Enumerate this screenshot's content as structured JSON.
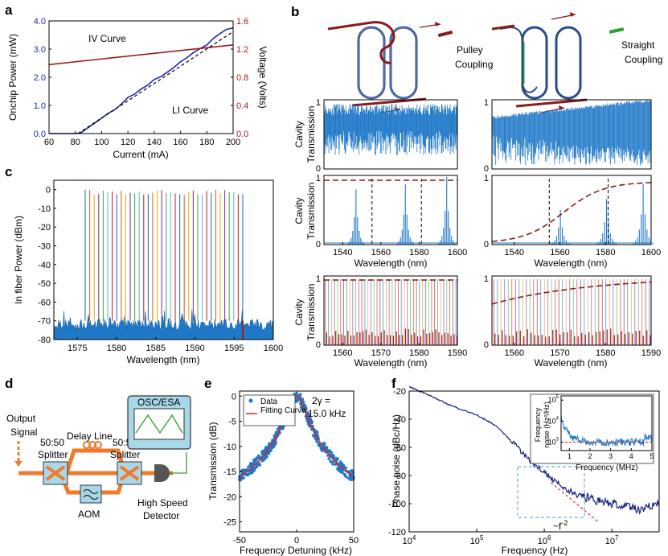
{
  "panel_labels": {
    "a": "a",
    "b": "b",
    "c": "c",
    "d": "d",
    "e": "e",
    "f": "f"
  },
  "colors": {
    "li_blue": "#1f2aa8",
    "iv_red": "#9b1c1c",
    "trans_blue": "#1f78c8",
    "dash_red": "#8b1a1a",
    "esa_green": "#2ca02c",
    "fit_red": "#d62728",
    "phase_navy": "#1a237e",
    "inset_blue": "#1f78c8",
    "orange": "#f07a2a",
    "teal_box": "#a8d8e8",
    "detector": "#555555",
    "box_dash": "#5fb3d9"
  },
  "chart_data": [
    {
      "id": "a",
      "type": "line",
      "xlabel": "Current (mA)",
      "ylabel": "Onchip Power (mW)",
      "y2label": "Voltage (Volts)",
      "xlim": [
        60,
        200
      ],
      "ylim": [
        0,
        4
      ],
      "y2lim": [
        0,
        1.6
      ],
      "xticks": [
        60,
        80,
        100,
        120,
        140,
        160,
        180,
        200
      ],
      "yticks": [
        "0.0",
        "1.0",
        "2.0",
        "3.0",
        "4.0"
      ],
      "y2ticks": [
        "0.0",
        "0.4",
        "0.8",
        "1.2",
        "1.6"
      ],
      "series": [
        {
          "name": "LI Curve",
          "axis": "left",
          "color": "#1f2aa8",
          "x": [
            60,
            80,
            84,
            90,
            95,
            100,
            105,
            110,
            115,
            120,
            125,
            130,
            135,
            140,
            145,
            150,
            155,
            160,
            165,
            170,
            175,
            180,
            185,
            190,
            195,
            200
          ],
          "y": [
            0,
            0,
            0.02,
            0.22,
            0.38,
            0.55,
            0.72,
            0.85,
            1.05,
            1.28,
            1.4,
            1.58,
            1.72,
            1.92,
            2.02,
            2.18,
            2.35,
            2.55,
            2.7,
            2.88,
            3.02,
            3.15,
            3.38,
            3.55,
            3.7,
            3.75
          ]
        },
        {
          "name": "IV Curve",
          "axis": "right",
          "color": "#9b1c1c",
          "x": [
            60,
            200
          ],
          "y": [
            0.98,
            1.26
          ]
        },
        {
          "name": "fit",
          "axis": "left",
          "dashed": true,
          "color": "#000000",
          "x": [
            82,
            200
          ],
          "y": [
            0,
            3.62
          ]
        }
      ],
      "labels": {
        "iv": "IV Curve",
        "li": "LI Curve"
      }
    },
    {
      "id": "c",
      "type": "line",
      "xlabel": "Wavelength (nm)",
      "ylabel": "In fiber Power (dBm)",
      "xlim": [
        1572,
        1600
      ],
      "ylim": [
        -80,
        5
      ],
      "xticks": [
        1575,
        1580,
        1585,
        1590,
        1595,
        1600
      ],
      "yticks": [
        0,
        -10,
        -20,
        -30,
        -40,
        -50,
        -60,
        -70,
        -80
      ],
      "comb": {
        "start": 1576.0,
        "stop": 1596.1,
        "count": 36,
        "peak_dbm": 0,
        "floor_dbm": -70
      }
    },
    {
      "id": "e",
      "type": "scatter",
      "xlabel": "Frequency Detuning (kHz)",
      "ylabel": "Transmission (dB)",
      "xlim": [
        -50,
        50
      ],
      "ylim": [
        -27,
        1
      ],
      "xticks": [
        -50,
        0,
        50
      ],
      "yticks": [
        0,
        -5,
        -10,
        -15,
        -20,
        -25
      ],
      "legend": {
        "data": "Data",
        "fit": "Fitting Curve"
      },
      "annotation": {
        "line1": "2γ =",
        "line2": "15.0 kHz"
      },
      "lorentzian": {
        "half_width_khz": 7.5,
        "floor_db": -25.5
      }
    },
    {
      "id": "f",
      "type": "line",
      "xlabel": "Frequency (Hz)",
      "ylabel": "Phase noise (dBc/Hz)",
      "xlim_log10": [
        4,
        7.7
      ],
      "ylim": [
        -120,
        -20
      ],
      "xticks": [
        {
          "exp": "4",
          "pos": 4
        },
        {
          "exp": "5",
          "pos": 5
        },
        {
          "exp": "6",
          "pos": 6
        },
        {
          "exp": "7",
          "pos": 7
        }
      ],
      "tick_base": "10",
      "yticks": [
        -20,
        -40,
        -60,
        -80,
        -100,
        -120
      ],
      "series": {
        "log10_f": [
          4,
          4.3,
          4.6,
          5.0,
          5.3,
          5.5,
          5.7,
          5.9,
          6.1,
          6.3,
          6.5,
          6.8,
          7.0,
          7.2,
          7.4,
          7.7
        ],
        "dbc": [
          -17,
          -23,
          -30,
          -37,
          -45,
          -55,
          -65,
          -74,
          -82,
          -89,
          -94,
          -98,
          -100,
          -102,
          -104,
          -100
        ]
      },
      "slope_label": {
        "approx": "~",
        "base": "f",
        "exponent": "-2"
      },
      "inset": {
        "xlabel": "Frequency (MHz)",
        "ylabel_line1": "Frequency",
        "ylabel_line2": "noise (Hz²/Hz)",
        "xticks": [
          "1",
          "2",
          "3",
          "4",
          "5"
        ],
        "ytick_base": "10",
        "yticks": [
          {
            "exp": "5"
          },
          {
            "exp": "4"
          },
          {
            "exp": "3"
          }
        ],
        "floor": 1000
      }
    }
  ],
  "panel_b": {
    "coupling": {
      "pulley": [
        "Pulley",
        "Coupling"
      ],
      "straight": [
        "Straight",
        "Coupling"
      ]
    },
    "ylabel": [
      "Cavity",
      "Transmission"
    ],
    "xlabel": "Wavelength (nm)",
    "rows": [
      {
        "yticks": [
          "1",
          "0"
        ],
        "xticks": []
      },
      {
        "yticks": [
          "1",
          "0"
        ],
        "xticks": [
          "1540",
          "1560",
          "1580",
          "1600"
        ]
      },
      {
        "yticks": [
          "1",
          "0"
        ],
        "xticks": [
          "1560",
          "1570",
          "1580",
          "1590"
        ]
      }
    ]
  },
  "panel_d": {
    "output_signal": [
      "Output",
      "Signal"
    ],
    "delay_line": "Delay Line",
    "splitter_left": [
      "50:50",
      "Splitter"
    ],
    "splitter_right": [
      "50:50",
      "Splitter"
    ],
    "aom": "AOM",
    "detector": [
      "High Speed",
      "Detector"
    ],
    "osc": "OSC/ESA"
  }
}
